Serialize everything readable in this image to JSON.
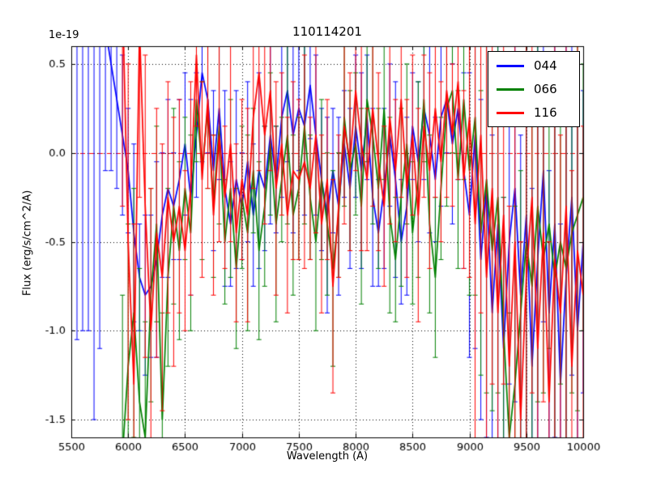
{
  "chart_data": {
    "type": "line",
    "title": "110114201",
    "xlabel": "Wavelength (A)",
    "ylabel": "Flux (erg/s/cm^2/A)",
    "y_offset_label": "1e-19",
    "xlim": [
      5500,
      10000
    ],
    "ylim": [
      -1.6,
      0.6
    ],
    "xticks": [
      5500,
      6000,
      6500,
      7000,
      7500,
      8000,
      8500,
      9000,
      9500,
      10000
    ],
    "yticks": [
      0.5,
      0.0,
      -0.5,
      -1.0,
      -1.5
    ],
    "xtick_labels": [
      "5500",
      "6000",
      "6500",
      "7000",
      "7500",
      "8000",
      "8500",
      "9000",
      "9500",
      "10000"
    ],
    "ytick_labels": [
      "0.5",
      "0.0",
      "-0.5",
      "-1.0",
      "-1.5"
    ],
    "grid": true,
    "grid_style": "dotted",
    "zero_line": {
      "y": 0.0,
      "color": "#ff0000",
      "style": "dashed"
    },
    "legend_position": "upper right",
    "x": [
      5500,
      5550,
      5600,
      5650,
      5700,
      5750,
      5800,
      5850,
      5900,
      5950,
      6000,
      6050,
      6100,
      6150,
      6200,
      6250,
      6300,
      6350,
      6400,
      6450,
      6500,
      6550,
      6600,
      6650,
      6700,
      6750,
      6800,
      6850,
      6900,
      6950,
      7000,
      7050,
      7100,
      7150,
      7200,
      7250,
      7300,
      7350,
      7400,
      7450,
      7500,
      7550,
      7600,
      7650,
      7700,
      7750,
      7800,
      7850,
      7900,
      7950,
      8000,
      8050,
      8100,
      8150,
      8200,
      8250,
      8300,
      8350,
      8400,
      8450,
      8500,
      8550,
      8600,
      8650,
      8700,
      8750,
      8800,
      8850,
      8900,
      8950,
      9000,
      9050,
      9100,
      9150,
      9200,
      9250,
      9300,
      9350,
      9400,
      9450,
      9500,
      9550,
      9600,
      9650,
      9700,
      9750,
      9800,
      9850,
      9900,
      9950,
      10000
    ],
    "series": [
      {
        "name": "044",
        "color": "#0000ff",
        "y": [
          2.0,
          1.75,
          1.5,
          1.3,
          1.1,
          0.9,
          0.7,
          0.5,
          0.3,
          0.1,
          -0.1,
          -0.45,
          -0.7,
          -0.8,
          -0.75,
          -0.6,
          -0.35,
          -0.2,
          -0.3,
          -0.15,
          0.05,
          -0.25,
          0.1,
          0.45,
          0.3,
          -0.1,
          0.25,
          -0.2,
          -0.4,
          -0.15,
          -0.3,
          -0.05,
          -0.35,
          -0.1,
          -0.2,
          0.1,
          -0.15,
          0.2,
          0.35,
          0.1,
          0.25,
          0.15,
          0.38,
          0.1,
          -0.15,
          -0.35,
          -0.1,
          -0.3,
          0.05,
          -0.2,
          0.15,
          -0.1,
          0.2,
          -0.25,
          -0.45,
          -0.2,
          0.1,
          -0.15,
          -0.5,
          -0.3,
          0.15,
          -0.05,
          0.25,
          0.1,
          -0.15,
          0.2,
          0.3,
          0.05,
          0.25,
          -0.1,
          -0.35,
          0.1,
          -0.6,
          -0.2,
          -0.9,
          -0.4,
          -1.1,
          -0.5,
          -0.2,
          -0.8,
          -0.35,
          -1.2,
          -0.6,
          -0.1,
          -0.9,
          -0.4,
          -1.3,
          -0.7,
          -0.25,
          -1.0,
          -0.5
        ],
        "yerr": [
          3.0,
          2.8,
          2.5,
          2.3,
          2.6,
          2.0,
          0.8,
          0.6,
          0.5,
          0.45,
          0.35,
          0.5,
          0.3,
          0.45,
          0.4,
          0.55,
          0.35,
          0.5,
          0.3,
          0.45,
          0.4,
          0.55,
          0.35,
          0.5,
          0.3,
          0.45,
          0.4,
          0.55,
          0.35,
          0.5,
          0.3,
          0.45,
          0.4,
          0.55,
          0.35,
          0.5,
          0.3,
          0.45,
          0.4,
          0.55,
          0.35,
          0.5,
          0.3,
          0.45,
          0.4,
          0.55,
          0.35,
          0.5,
          0.3,
          0.45,
          0.4,
          0.55,
          0.35,
          0.5,
          0.3,
          0.45,
          0.4,
          0.55,
          0.35,
          0.5,
          0.3,
          0.45,
          0.4,
          0.55,
          0.35,
          0.5,
          0.3,
          0.45,
          0.4,
          0.55,
          0.8,
          1.2,
          0.9,
          1.4,
          1.0,
          1.3,
          0.85,
          0.8,
          1.2,
          0.9,
          1.4,
          1.0,
          1.3,
          0.85,
          0.8,
          1.2,
          0.9,
          1.4,
          1.0,
          1.3,
          0.85
        ]
      },
      {
        "name": "066",
        "color": "#008000",
        "y": [
          null,
          null,
          null,
          null,
          null,
          null,
          null,
          null,
          null,
          -1.7,
          -1.2,
          -0.9,
          -1.4,
          -1.6,
          -0.8,
          -0.4,
          -1.5,
          -0.7,
          -0.3,
          -0.55,
          -0.2,
          -0.45,
          0.3,
          -0.1,
          0.25,
          -0.3,
          0.15,
          -0.5,
          -0.2,
          -0.65,
          -0.25,
          -0.45,
          -0.1,
          -0.55,
          -0.3,
          0.05,
          -0.4,
          -0.15,
          0.1,
          -0.35,
          -0.2,
          0.15,
          -0.25,
          -0.5,
          -0.15,
          -0.4,
          -0.65,
          -0.35,
          0.2,
          -0.1,
          0.05,
          -0.3,
          0.3,
          0.1,
          -0.2,
          0.25,
          -0.35,
          -0.6,
          -0.25,
          0.05,
          -0.45,
          -0.15,
          0.3,
          -0.4,
          -0.7,
          -0.2,
          0.25,
          0.35,
          -0.15,
          0.3,
          -0.1,
          0.2,
          -0.45,
          -0.15,
          -0.55,
          -0.25,
          -1.0,
          -1.6,
          -1.3,
          -0.9,
          -0.5,
          -0.75,
          -0.3,
          -0.6,
          -0.4,
          -0.7,
          -0.5,
          -0.65,
          -0.45,
          -0.35,
          -0.25
        ],
        "yerr": [
          null,
          null,
          null,
          null,
          null,
          null,
          null,
          null,
          null,
          0.9,
          0.8,
          0.7,
          0.75,
          0.65,
          0.6,
          0.55,
          0.6,
          0.5,
          0.55,
          0.5,
          0.4,
          0.55,
          0.35,
          0.5,
          0.45,
          0.4,
          0.55,
          0.35,
          0.5,
          0.45,
          0.4,
          0.55,
          0.35,
          0.5,
          0.45,
          0.4,
          0.55,
          0.35,
          0.5,
          0.45,
          0.4,
          0.55,
          0.35,
          0.5,
          0.45,
          0.4,
          0.55,
          0.35,
          0.5,
          0.45,
          0.4,
          0.55,
          0.35,
          0.5,
          0.45,
          0.4,
          0.55,
          0.35,
          0.5,
          0.45,
          0.4,
          0.55,
          0.35,
          0.5,
          0.45,
          0.4,
          0.55,
          0.35,
          0.5,
          0.45,
          0.7,
          1.0,
          0.8,
          1.2,
          0.9,
          1.1,
          0.75,
          0.7,
          1.0,
          0.8,
          1.2,
          0.9,
          1.1,
          0.75,
          0.7,
          1.0,
          0.8,
          1.2,
          0.9,
          1.1,
          0.75
        ]
      },
      {
        "name": "116",
        "color": "#ff0000",
        "y": [
          null,
          null,
          null,
          null,
          null,
          null,
          null,
          null,
          null,
          0.9,
          -0.5,
          -1.3,
          0.7,
          -0.3,
          -1.0,
          -0.45,
          -0.7,
          -0.25,
          -0.5,
          -0.3,
          -0.55,
          -0.2,
          0.55,
          -0.15,
          0.3,
          -0.35,
          0.1,
          -0.25,
          0.05,
          -0.45,
          -0.15,
          -0.35,
          0.2,
          0.45,
          0.1,
          0.35,
          -0.2,
          0.05,
          -0.35,
          -0.1,
          -0.15,
          -0.05,
          -0.2,
          0.1,
          -0.4,
          -0.15,
          -0.75,
          -0.3,
          0.15,
          -0.05,
          0.35,
          0.05,
          -0.15,
          0.25,
          -0.05,
          -0.3,
          0.2,
          -0.1,
          0.3,
          -0.2,
          0.1,
          -0.35,
          0.15,
          -0.1,
          0.25,
          -0.05,
          0.35,
          0.1,
          0.4,
          -0.15,
          0.2,
          -0.4,
          0.1,
          -0.7,
          -0.2,
          -0.9,
          -0.35,
          -1.2,
          -0.5,
          -1.5,
          -0.7,
          -0.25,
          -1.1,
          -0.45,
          -1.4,
          -0.6,
          -0.9,
          -0.3,
          -1.2,
          -0.55,
          -0.8
        ],
        "yerr": [
          null,
          null,
          null,
          null,
          null,
          null,
          null,
          null,
          null,
          1.2,
          1.0,
          0.9,
          0.95,
          0.85,
          0.8,
          0.7,
          0.75,
          0.65,
          0.7,
          0.6,
          0.45,
          0.6,
          0.4,
          0.55,
          0.5,
          0.45,
          0.6,
          0.4,
          0.55,
          0.5,
          0.45,
          0.6,
          0.4,
          0.55,
          0.5,
          0.45,
          0.6,
          0.4,
          0.55,
          0.5,
          0.45,
          0.6,
          0.4,
          0.55,
          0.5,
          0.45,
          0.6,
          0.4,
          0.55,
          0.5,
          0.45,
          0.6,
          0.4,
          0.55,
          0.5,
          0.45,
          0.6,
          0.4,
          0.55,
          0.5,
          0.45,
          0.6,
          0.4,
          0.55,
          0.5,
          0.45,
          0.6,
          0.4,
          0.55,
          0.5,
          0.9,
          1.3,
          1.0,
          1.5,
          1.1,
          1.4,
          0.95,
          0.9,
          1.3,
          1.0,
          1.5,
          1.1,
          1.4,
          0.95,
          0.9,
          1.3,
          1.0,
          1.5,
          1.1,
          1.4,
          0.95
        ]
      }
    ]
  }
}
